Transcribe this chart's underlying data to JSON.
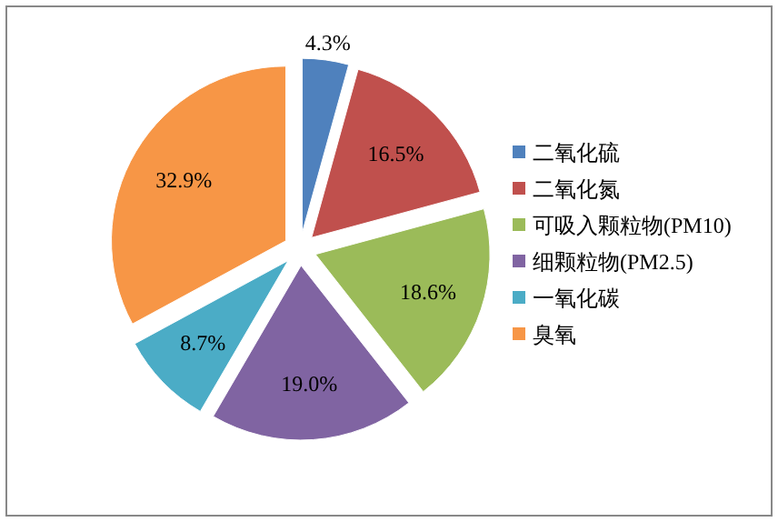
{
  "chart_data": {
    "type": "pie",
    "categories": [
      "二氧化硫",
      "二氧化氮",
      "可吸入颗粒物(PM10)",
      "细颗粒物(PM2.5)",
      "一氧化碳",
      "臭氧"
    ],
    "values": [
      4.3,
      16.5,
      18.6,
      19.0,
      8.7,
      32.9
    ],
    "colors": [
      "#4f81bd",
      "#c0504d",
      "#9bbb59",
      "#8064a2",
      "#4bacc6",
      "#f79646"
    ],
    "value_labels": [
      "4.3%",
      "16.5%",
      "18.6%",
      "19.0%",
      "8.7%",
      "32.9%"
    ],
    "legend": "right"
  }
}
